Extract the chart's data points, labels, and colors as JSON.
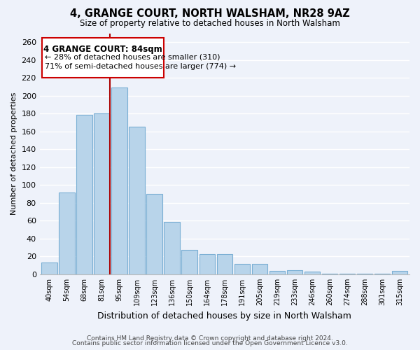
{
  "title": "4, GRANGE COURT, NORTH WALSHAM, NR28 9AZ",
  "subtitle": "Size of property relative to detached houses in North Walsham",
  "xlabel": "Distribution of detached houses by size in North Walsham",
  "ylabel": "Number of detached properties",
  "bar_color": "#b8d4ea",
  "bar_edge_color": "#7aafd4",
  "bg_color": "#eef2fa",
  "grid_color": "#ffffff",
  "bin_labels": [
    "40sqm",
    "54sqm",
    "68sqm",
    "81sqm",
    "95sqm",
    "109sqm",
    "123sqm",
    "136sqm",
    "150sqm",
    "164sqm",
    "178sqm",
    "191sqm",
    "205sqm",
    "219sqm",
    "233sqm",
    "246sqm",
    "260sqm",
    "274sqm",
    "288sqm",
    "301sqm",
    "315sqm"
  ],
  "values": [
    13,
    92,
    179,
    180,
    209,
    165,
    90,
    59,
    27,
    23,
    23,
    12,
    12,
    4,
    5,
    3,
    1,
    1,
    1,
    1,
    4
  ],
  "n_bins": 21,
  "ylim": [
    0,
    270
  ],
  "yticks": [
    0,
    20,
    40,
    60,
    80,
    100,
    120,
    140,
    160,
    180,
    200,
    220,
    240,
    260
  ],
  "property_line_color": "#aa0000",
  "annotation_title": "4 GRANGE COURT: 84sqm",
  "annotation_line1": "← 28% of detached houses are smaller (310)",
  "annotation_line2": "71% of semi-detached houses are larger (774) →",
  "annotation_box_color": "#ffffff",
  "annotation_box_edge": "#cc0000",
  "footer1": "Contains HM Land Registry data © Crown copyright and database right 2024.",
  "footer2": "Contains public sector information licensed under the Open Government Licence v3.0."
}
